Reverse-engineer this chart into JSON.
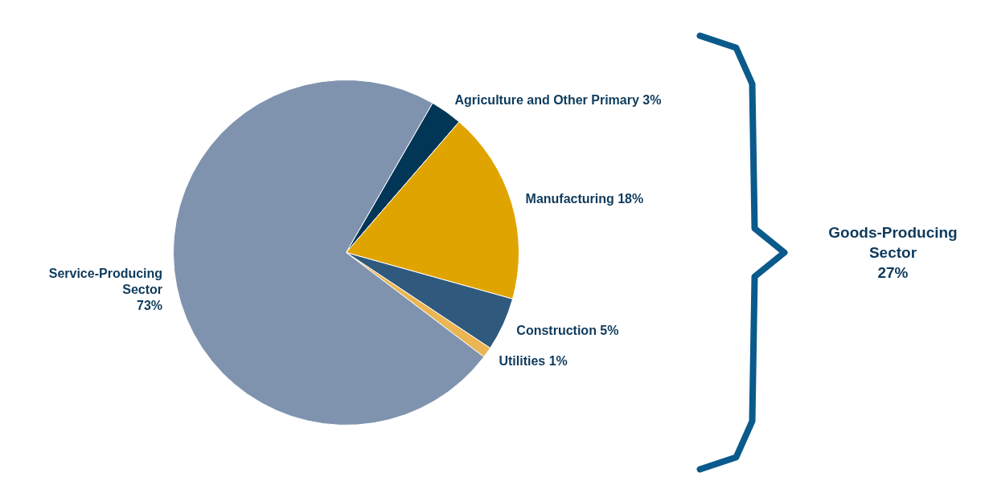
{
  "chart_data": {
    "type": "pie",
    "categories": [
      "Agriculture and Other Primary",
      "Manufacturing",
      "Construction",
      "Utilities",
      "Service-Producing Sector"
    ],
    "values": [
      3,
      18,
      5,
      1,
      73
    ],
    "colors": [
      "#023657",
      "#e0a400",
      "#2f5a7e",
      "#ebb553",
      "#7f93ae"
    ],
    "value_labels": [
      "3%",
      "18%",
      "5%",
      "1%",
      "73%"
    ],
    "annotations": [
      "Goods-Producing Sector 27%"
    ]
  }
}
